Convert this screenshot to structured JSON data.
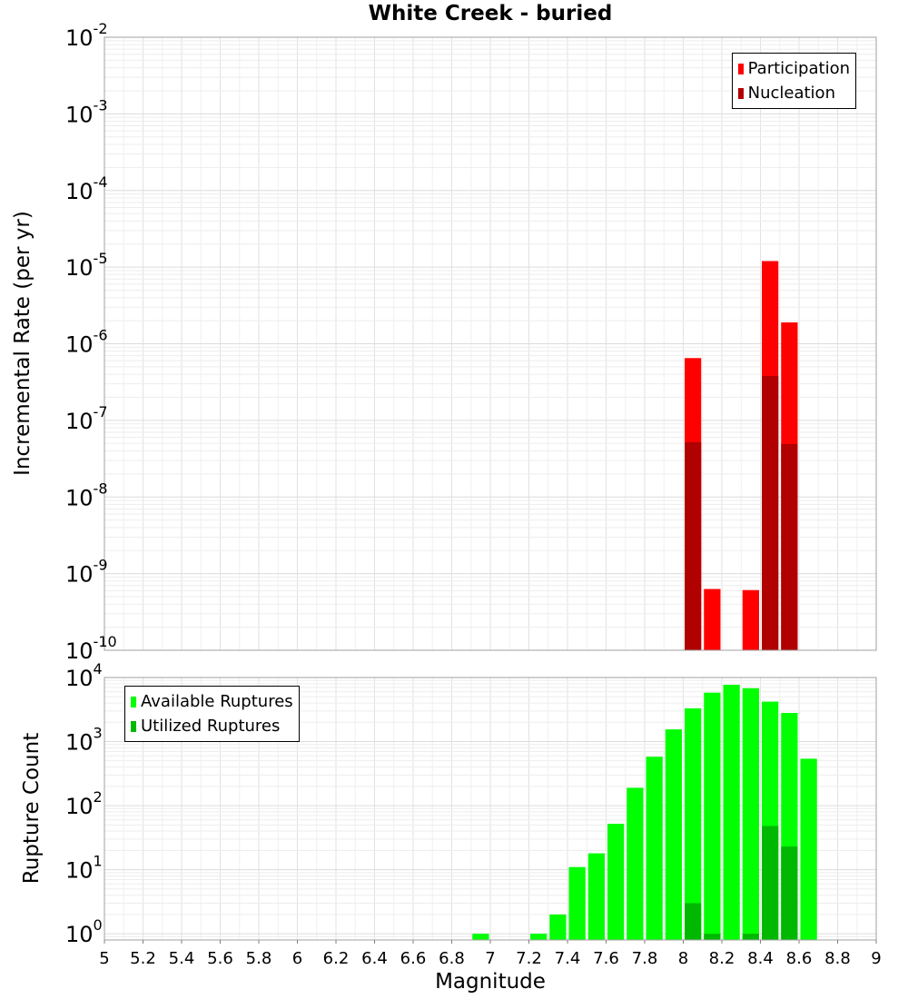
{
  "chart_data": [
    {
      "type": "bar",
      "title": "White Creek - buried",
      "xlabel": "Magnitude",
      "ylabel": "Incremental Rate (per yr)",
      "yscale": "log",
      "ylim": [
        1e-10,
        0.01
      ],
      "xlim": [
        5,
        9
      ],
      "ytick_exponents": [
        -10,
        -9,
        -8,
        -7,
        -6,
        -5,
        -4,
        -3,
        -2
      ],
      "legend_position": "top-right",
      "series": [
        {
          "name": "Participation",
          "color": "#ff0000",
          "x": [
            8.05,
            8.15,
            8.35,
            8.45,
            8.55
          ],
          "values": [
            6.5e-07,
            6.3e-10,
            6.1e-10,
            1.2e-05,
            1.9e-06
          ]
        },
        {
          "name": "Nucleation",
          "color": "#b00000",
          "x": [
            8.05,
            8.45,
            8.55
          ],
          "values": [
            5.2e-08,
            3.8e-07,
            4.9e-08
          ]
        }
      ]
    },
    {
      "type": "bar",
      "title": "",
      "xlabel": "Magnitude",
      "ylabel": "Rupture Count",
      "yscale": "log",
      "ylim": [
        0.8,
        10000
      ],
      "xlim": [
        5,
        9
      ],
      "xticks": [
        "5",
        "5.2",
        "5.4",
        "5.6",
        "5.8",
        "6",
        "6.2",
        "6.4",
        "6.6",
        "6.8",
        "7",
        "7.2",
        "7.4",
        "7.6",
        "7.8",
        "8",
        "8.2",
        "8.4",
        "8.6",
        "8.8",
        "9"
      ],
      "ytick_exponents": [
        0,
        1,
        2,
        3,
        4
      ],
      "legend_position": "top-left",
      "series": [
        {
          "name": "Available Ruptures",
          "color": "#00ff00",
          "x": [
            6.95,
            7.25,
            7.35,
            7.45,
            7.55,
            7.65,
            7.75,
            7.85,
            7.95,
            8.05,
            8.15,
            8.25,
            8.35,
            8.45,
            8.55,
            8.65
          ],
          "values": [
            1,
            1,
            2,
            11,
            18,
            52,
            190,
            580,
            1550,
            3300,
            5800,
            7700,
            6800,
            4200,
            2800,
            540
          ]
        },
        {
          "name": "Utilized Ruptures",
          "color": "#00b800",
          "x": [
            8.05,
            8.15,
            8.35,
            8.45,
            8.55
          ],
          "values": [
            3,
            1,
            1,
            48,
            23
          ]
        }
      ]
    }
  ]
}
